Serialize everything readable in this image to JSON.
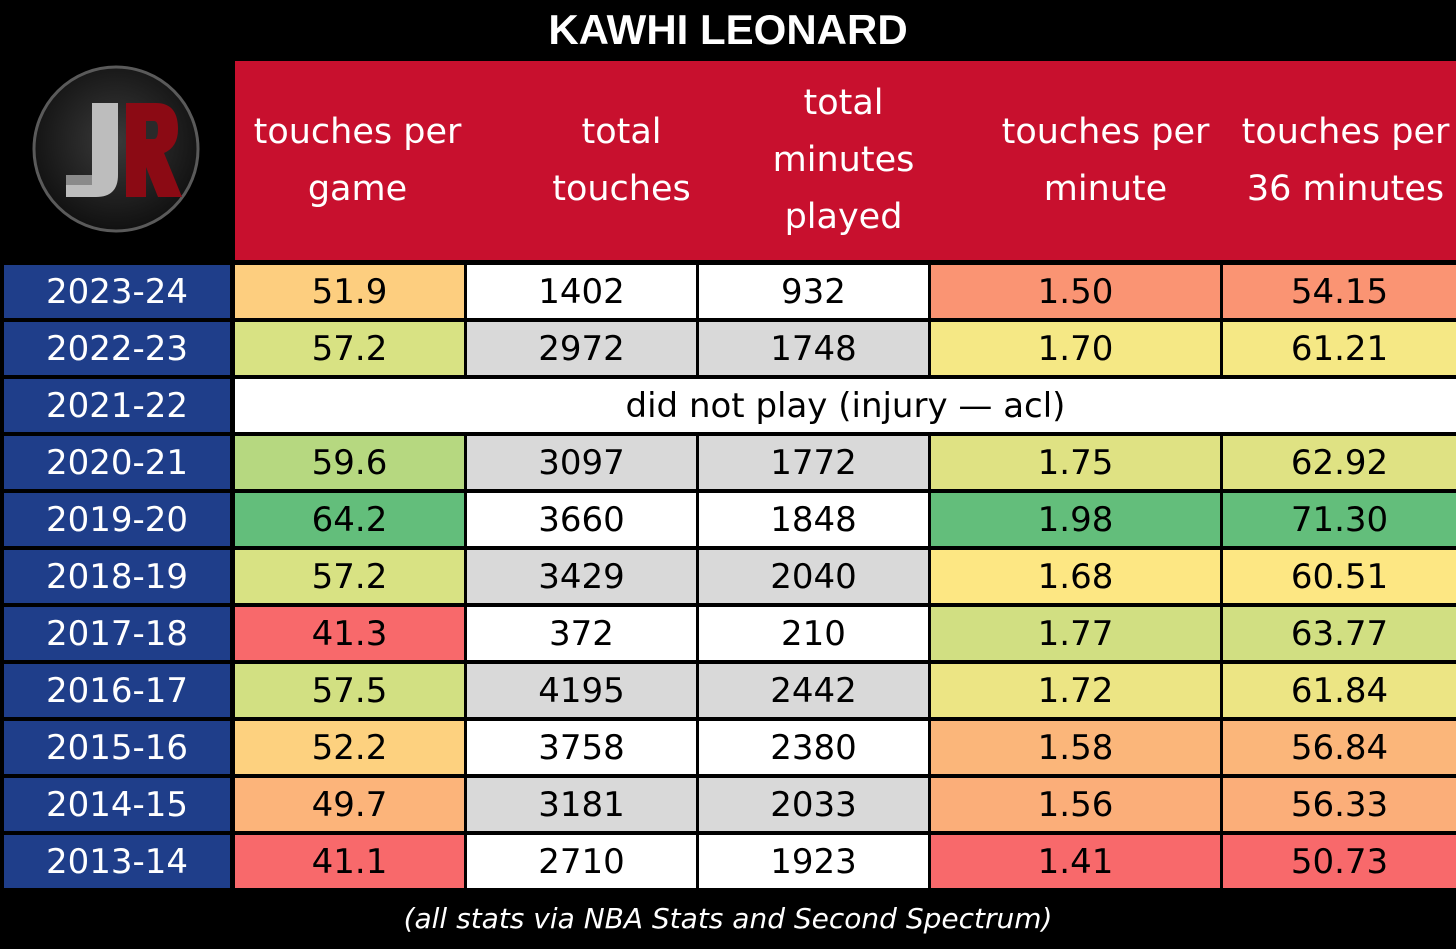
{
  "title": "KAWHI LEONARD",
  "footer": "(all stats via NBA Stats and Second Spectrum)",
  "logo": {
    "letters": "JR"
  },
  "colors": {
    "header_bg": "#c8102e",
    "season_bg": "#1f3e8a",
    "white": "#ffffff",
    "light_gray": "#d9d9d9",
    "heat_red": "#f8696b",
    "heat_orange": "#fcb47a",
    "heat_yellow": "#fee783",
    "heat_green": "#63be7b"
  },
  "chart_data": {
    "type": "table",
    "title": "KAWHI LEONARD",
    "columns": [
      "touches per game",
      "total touches",
      "total minutes played",
      "touches per minute",
      "touches per 36 minutes"
    ],
    "rows": [
      {
        "season": "2023-24",
        "values": [
          "51.9",
          "1402",
          "932",
          "1.50",
          "54.15"
        ],
        "colors": [
          "#fdce7f",
          "#ffffff",
          "#ffffff",
          "#fa9473",
          "#fa9473"
        ]
      },
      {
        "season": "2022-23",
        "values": [
          "57.2",
          "2972",
          "1748",
          "1.70",
          "61.21"
        ],
        "colors": [
          "#d8e283",
          "#d9d9d9",
          "#d9d9d9",
          "#f5e885",
          "#f5e885"
        ]
      },
      {
        "season": "2021-22",
        "note": "did not play (injury — acl)"
      },
      {
        "season": "2020-21",
        "values": [
          "59.6",
          "3097",
          "1772",
          "1.75",
          "62.92"
        ],
        "colors": [
          "#b6d880",
          "#d9d9d9",
          "#d9d9d9",
          "#dfe283",
          "#dfe283"
        ]
      },
      {
        "season": "2019-20",
        "values": [
          "64.2",
          "3660",
          "1848",
          "1.98",
          "71.30"
        ],
        "colors": [
          "#63be7b",
          "#ffffff",
          "#ffffff",
          "#63be7b",
          "#63be7b"
        ]
      },
      {
        "season": "2018-19",
        "values": [
          "57.2",
          "3429",
          "2040",
          "1.68",
          "60.51"
        ],
        "colors": [
          "#d8e283",
          "#d9d9d9",
          "#d9d9d9",
          "#fde783",
          "#fde783"
        ]
      },
      {
        "season": "2017-18",
        "values": [
          "41.3",
          "372",
          "210",
          "1.77",
          "63.77"
        ],
        "colors": [
          "#f8696b",
          "#ffffff",
          "#ffffff",
          "#d1df82",
          "#d1df82"
        ]
      },
      {
        "season": "2016-17",
        "values": [
          "57.5",
          "4195",
          "2442",
          "1.72",
          "61.84"
        ],
        "colors": [
          "#d2e082",
          "#d9d9d9",
          "#d9d9d9",
          "#ece584",
          "#ece584"
        ]
      },
      {
        "season": "2015-16",
        "values": [
          "52.2",
          "3758",
          "2380",
          "1.58",
          "56.84"
        ],
        "colors": [
          "#fdd17f",
          "#ffffff",
          "#ffffff",
          "#fbb67a",
          "#fbb67a"
        ]
      },
      {
        "season": "2014-15",
        "values": [
          "49.7",
          "3181",
          "2033",
          "1.56",
          "56.33"
        ],
        "colors": [
          "#fcb47a",
          "#d9d9d9",
          "#d9d9d9",
          "#fbae79",
          "#fbae79"
        ]
      },
      {
        "season": "2013-14",
        "values": [
          "41.1",
          "2710",
          "1923",
          "1.41",
          "50.73"
        ],
        "colors": [
          "#f8696b",
          "#ffffff",
          "#ffffff",
          "#f8696b",
          "#f8696b"
        ]
      }
    ]
  }
}
